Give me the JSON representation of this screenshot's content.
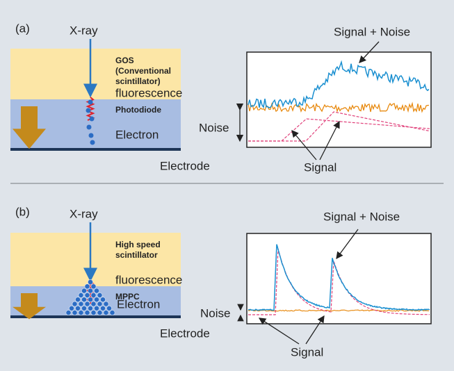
{
  "panels": [
    {
      "label": "(a)",
      "xray": "X-ray",
      "scintillator_lines": [
        "GOS",
        "(Conventional",
        "scintillator)"
      ],
      "fluorescence": "fluorescence",
      "detector": "Photodiode",
      "electron": "Electron",
      "electrode": "Electrode",
      "signal_noise": "Signal + Noise",
      "noise": "Noise",
      "signal": "Signal"
    },
    {
      "label": "(b)",
      "xray": "X-ray",
      "scintillator_lines": [
        "High speed",
        "scintillator"
      ],
      "fluorescence": "fluorescence",
      "detector": "MPPC",
      "electron": "Electron",
      "electrode": "Electrode",
      "signal_noise": "Signal + Noise",
      "noise": "Noise",
      "signal": "Signal"
    }
  ]
}
